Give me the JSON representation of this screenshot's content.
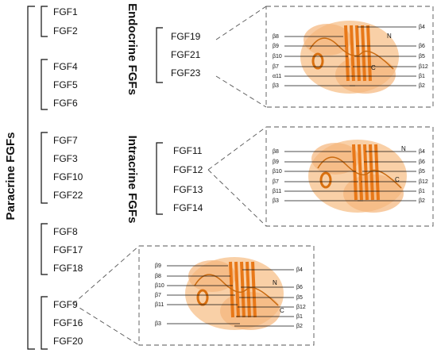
{
  "paracrine": {
    "label": "Paracrine FGFs",
    "groups": [
      [
        "FGF1",
        "FGF2"
      ],
      [
        "FGF4",
        "FGF5",
        "FGF6"
      ],
      [
        "FGF7",
        "FGF3",
        "FGF10",
        "FGF22"
      ],
      [
        "FGF8",
        "FGF17",
        "FGF18"
      ],
      [
        "FGF9",
        "FGF16",
        "FGF20"
      ]
    ]
  },
  "endocrine": {
    "label": "Endocrine FGFs",
    "members": [
      "FGF19",
      "FGF21",
      "FGF23"
    ]
  },
  "intracrine": {
    "label": "Intracrine FGFs",
    "members": [
      "FGF11",
      "FGF12",
      "FGF13",
      "FGF14"
    ]
  },
  "structures": [
    {
      "left": [
        "β8",
        "β9",
        "β10",
        "β7",
        "α11",
        "β3"
      ],
      "right": [
        "β4",
        "β6",
        "β5",
        "β12",
        "β1",
        "β2"
      ],
      "n": "N",
      "c": "C"
    },
    {
      "left": [
        "β8",
        "β9",
        "β10",
        "β7",
        "β11",
        "β3"
      ],
      "right": [
        "β4",
        "β6",
        "β5",
        "β12",
        "β1",
        "β2"
      ],
      "n": "N",
      "c": "C"
    },
    {
      "left": [
        "β9",
        "β8",
        "β10",
        "β7",
        "β11",
        "β3"
      ],
      "right": [
        "β4",
        "β6",
        "β5",
        "β12",
        "β1",
        "β2"
      ],
      "n": "N",
      "c": "C"
    }
  ]
}
